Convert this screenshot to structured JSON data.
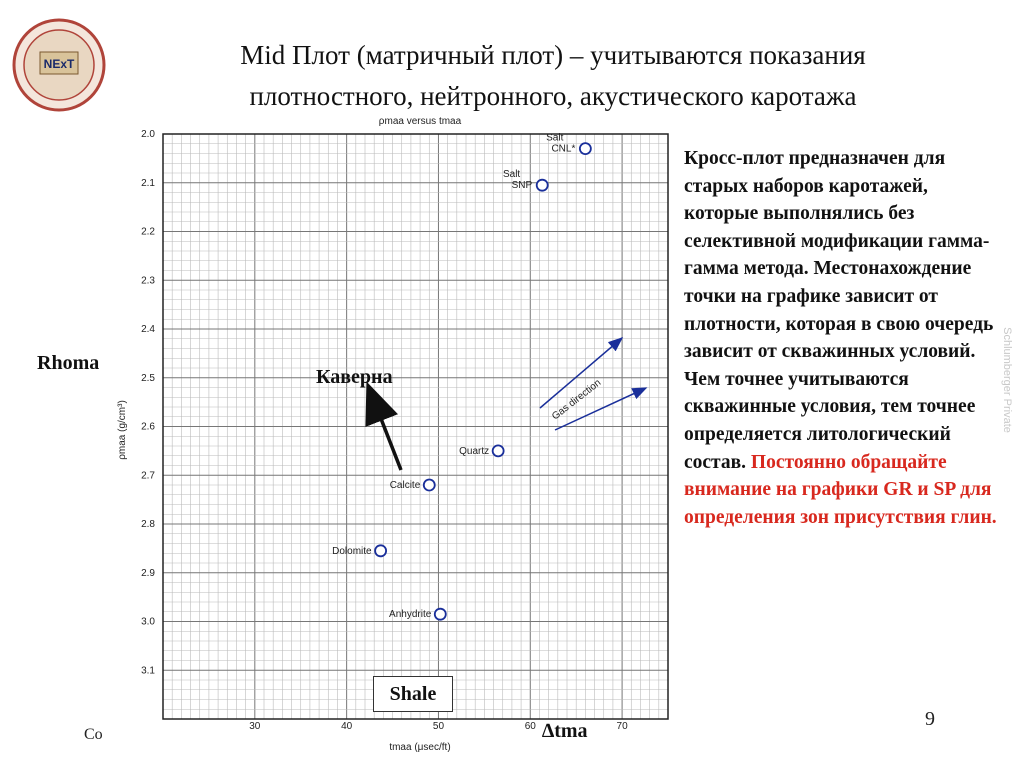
{
  "title": {
    "line1": "Mid Плот (матричный плот) – учитываются показания",
    "line2": "плотностного, нейтронного, акустического каротажа"
  },
  "logo": {
    "text": "NExT",
    "icon": "next-logo-seal"
  },
  "side_text": {
    "black": "Кросс-плот предназначен для старых наборов каротажей, которые выполнялись без селективной модификации гамма-гамма метода. Местонахождение точки на графике зависит от плотности, которая в свою очередь зависит от скважинных условий. Чем точнее учитываются скважинные условия, тем точнее определяется литологический состав.",
    "red": "Постоянно обращайте внимание на графики GR и SP для определения зон присутствия глин."
  },
  "watermark": "Schlumberger Private",
  "labels": {
    "rhoma": "Rhoma",
    "dtma": "∆tma",
    "shale": "Shale",
    "kaverna": "Каверна"
  },
  "page_number": "9",
  "copyright_fragment": "Co",
  "chart_data": {
    "type": "scatter",
    "title": "ρmaa versus tmaa",
    "xlabel": "tmaa (μsec/ft)",
    "ylabel": "ρmaa (g/cm³)",
    "xlim": [
      20,
      75
    ],
    "ylim": [
      3.2,
      2.0
    ],
    "y_inverted": true,
    "grid": true,
    "x_ticks": [
      30,
      40,
      50,
      60,
      70
    ],
    "y_ticks": [
      2.0,
      2.1,
      2.2,
      2.3,
      2.4,
      2.5,
      2.6,
      2.7,
      2.8,
      2.9,
      3.0,
      3.1
    ],
    "points": [
      {
        "label": "Salt CNL*",
        "x": 66.0,
        "y": 2.03
      },
      {
        "label": "Salt SNP",
        "x": 61.3,
        "y": 2.105
      },
      {
        "label": "Quartz",
        "x": 56.5,
        "y": 2.65
      },
      {
        "label": "Calcite",
        "x": 49.0,
        "y": 2.72
      },
      {
        "label": "Dolomite",
        "x": 43.7,
        "y": 2.855
      },
      {
        "label": "Anhydrite",
        "x": 50.2,
        "y": 2.985
      }
    ],
    "annotations": [
      {
        "text": "Gas direction",
        "type": "arrows"
      },
      {
        "text": "Каверна",
        "type": "arrow"
      }
    ]
  }
}
